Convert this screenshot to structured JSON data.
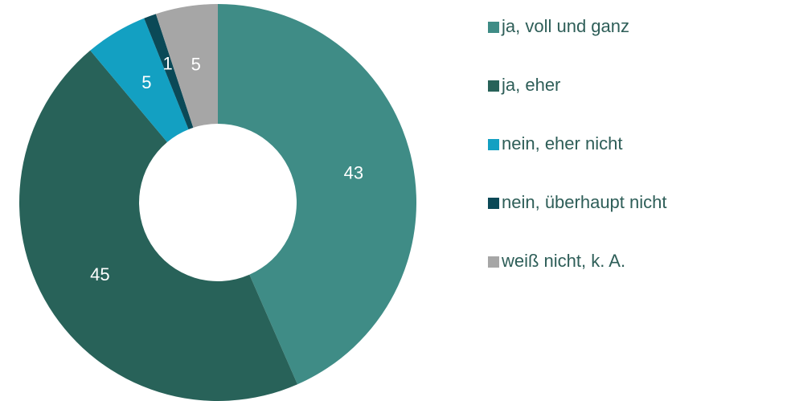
{
  "chart_data": {
    "type": "donut",
    "categories": [
      "ja, voll und ganz",
      "ja, eher",
      "nein, eher nicht",
      "nein, überhaupt nicht",
      "weiß nicht, k. A."
    ],
    "values": [
      43,
      45,
      5,
      1,
      5
    ],
    "colors": [
      "#3f8c86",
      "#286259",
      "#13a0c2",
      "#0b4957",
      "#a6a6a6"
    ],
    "legend": "right"
  }
}
